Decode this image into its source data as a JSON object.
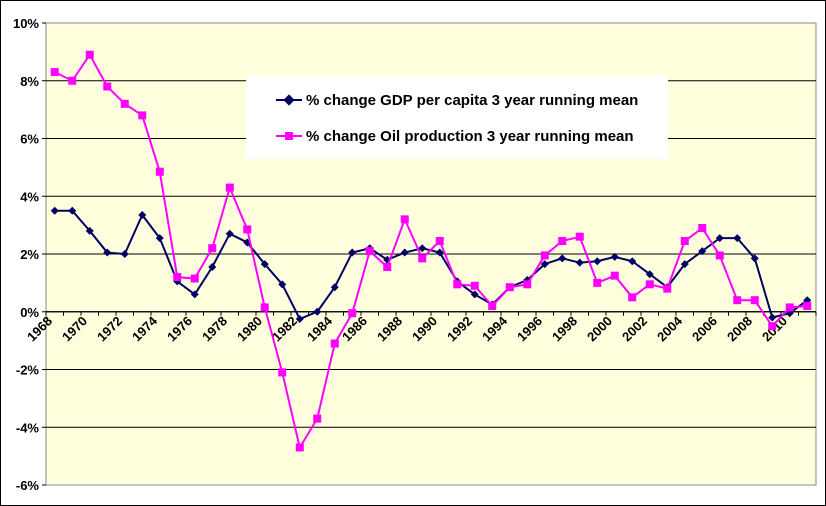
{
  "chart_data": {
    "type": "line",
    "x": [
      1968,
      1969,
      1970,
      1971,
      1972,
      1973,
      1974,
      1975,
      1976,
      1977,
      1978,
      1979,
      1980,
      1981,
      1982,
      1983,
      1984,
      1985,
      1986,
      1987,
      1988,
      1989,
      1990,
      1991,
      1992,
      1993,
      1994,
      1995,
      1996,
      1997,
      1998,
      1999,
      2000,
      2001,
      2002,
      2003,
      2004,
      2005,
      2006,
      2007,
      2008,
      2009,
      2010,
      2011
    ],
    "x_tick_labels": [
      "1968",
      "1970",
      "1972",
      "1974",
      "1976",
      "1978",
      "1980",
      "1982",
      "1984",
      "1986",
      "1988",
      "1990",
      "1992",
      "1994",
      "1996",
      "1998",
      "2000",
      "2002",
      "2004",
      "2006",
      "2008",
      "2010"
    ],
    "y_tick_labels": [
      "10%",
      "8%",
      "6%",
      "4%",
      "2%",
      "0%",
      "-2%",
      "-4%",
      "-6%"
    ],
    "ylim": [
      -6,
      10
    ],
    "y_unit": "%",
    "grid": "horizontal",
    "legend_position": "top-center",
    "series": [
      {
        "name": "% change GDP per capita 3 year running mean",
        "color": "#000066",
        "marker": "diamond",
        "values": [
          3.5,
          3.5,
          2.8,
          2.05,
          2.0,
          3.35,
          2.55,
          1.05,
          0.6,
          1.55,
          2.7,
          2.4,
          1.65,
          0.95,
          -0.25,
          0.0,
          0.85,
          2.05,
          2.2,
          1.8,
          2.05,
          2.2,
          2.05,
          1.05,
          0.6,
          0.25,
          0.85,
          1.1,
          1.65,
          1.85,
          1.7,
          1.75,
          1.9,
          1.75,
          1.3,
          0.85,
          1.65,
          2.1,
          2.55,
          2.55,
          1.85,
          -0.2,
          -0.05,
          0.4
        ]
      },
      {
        "name": "% change Oil production 3 year running mean",
        "color": "#ff00ff",
        "marker": "square",
        "values": [
          8.3,
          8.0,
          8.9,
          7.8,
          7.2,
          6.8,
          4.85,
          1.2,
          1.15,
          2.2,
          4.3,
          2.85,
          0.15,
          -2.1,
          -4.7,
          -3.7,
          -1.1,
          -0.05,
          2.1,
          1.55,
          3.2,
          1.85,
          2.45,
          0.95,
          0.9,
          0.2,
          0.85,
          0.95,
          1.95,
          2.45,
          2.6,
          1.0,
          1.25,
          0.5,
          0.95,
          0.8,
          2.45,
          2.9,
          1.95,
          0.4,
          0.4,
          -0.5,
          0.15,
          0.2
        ]
      }
    ]
  }
}
